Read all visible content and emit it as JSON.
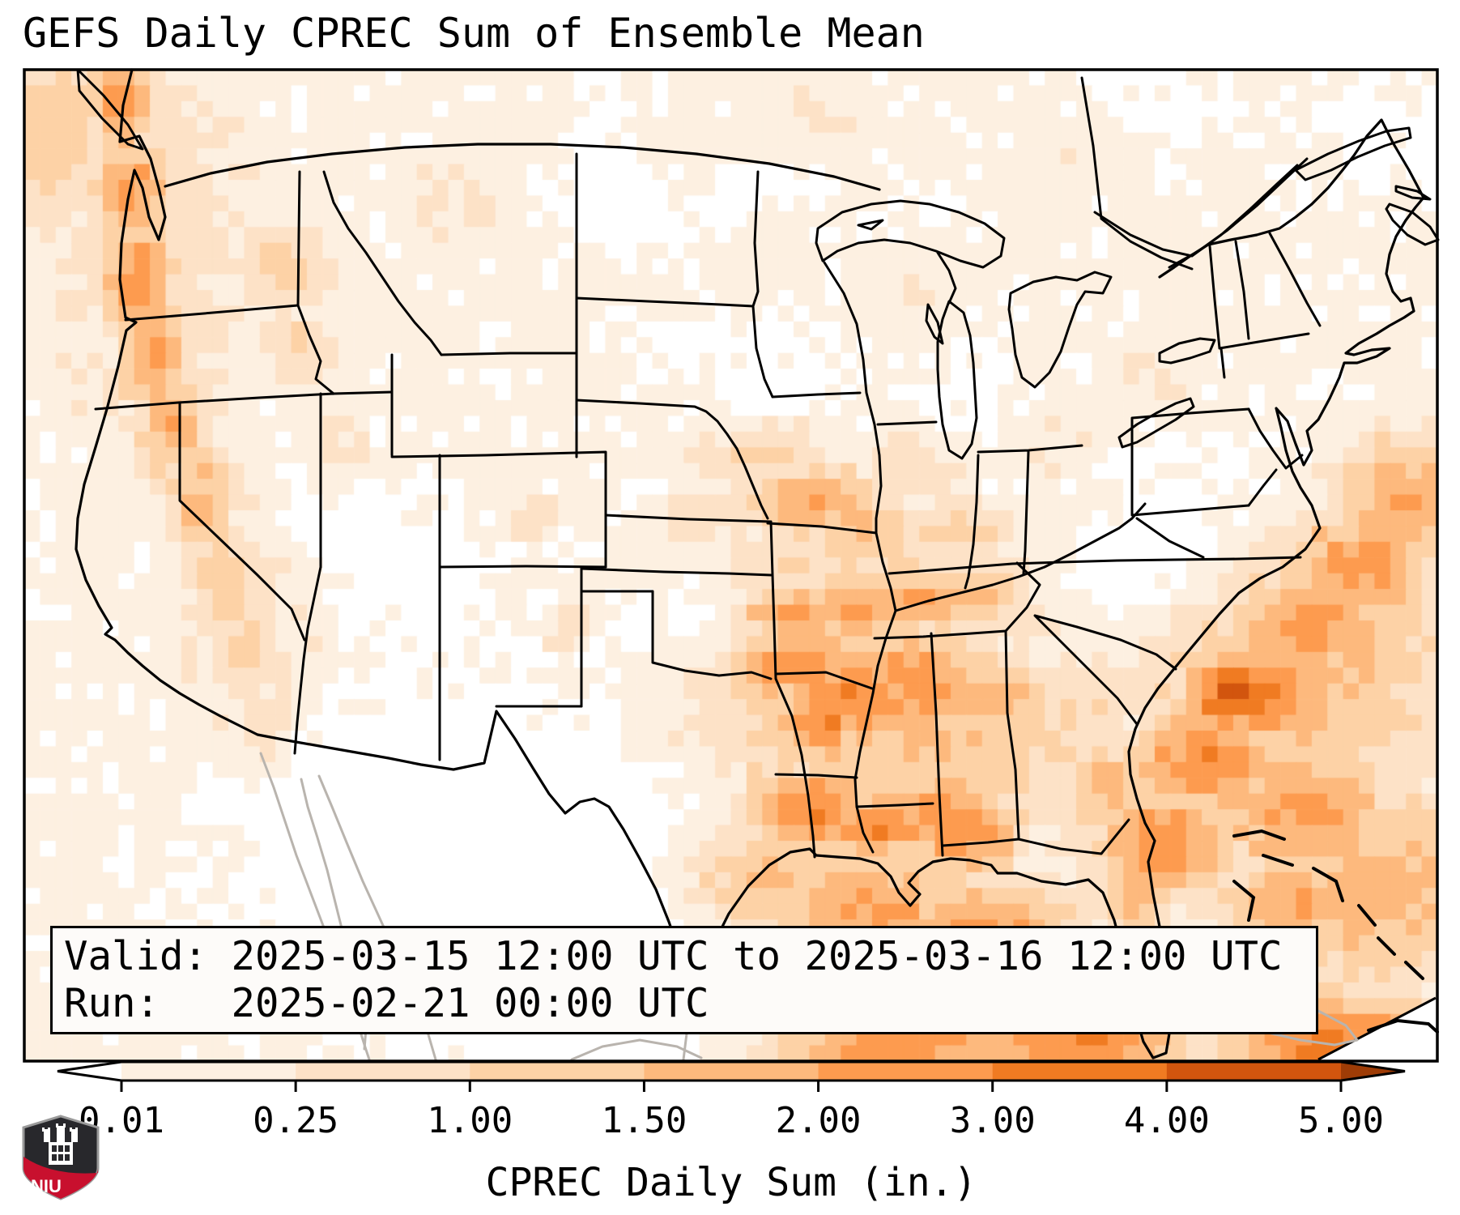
{
  "title": "GEFS Daily CPREC Sum of Ensemble Mean",
  "info_box": {
    "line1": "Valid: 2025-03-15 12:00 UTC to 2025-03-16 12:00 UTC",
    "line2": "Run:   2025-02-21 00:00 UTC"
  },
  "colorbar": {
    "label": "CPREC Daily Sum (in.)",
    "tick_labels": [
      "0.01",
      "0.25",
      "1.00",
      "1.50",
      "2.00",
      "3.00",
      "4.00",
      "5.00"
    ],
    "segment_colors": [
      "#fdf0e1",
      "#fde2c7",
      "#fdd2a6",
      "#fdb97d",
      "#fd9b4f",
      "#f07b22",
      "#d2550e"
    ],
    "under_arrow_color": "#ffffff",
    "over_arrow_color": "#9e3c06",
    "border_color": "#000000"
  },
  "logo": {
    "text": "NIU",
    "shield_dark": "#28282c",
    "shield_red": "#c8102e",
    "trim": "#9a9a9a"
  },
  "chart_data": {
    "type": "heatmap",
    "title": "GEFS Daily CPREC Sum of Ensemble Mean",
    "variable": "CPREC Daily Sum",
    "units": "in.",
    "valid": "2025-03-15 12:00 UTC to 2025-03-16 12:00 UTC",
    "run": "2025-02-21 00:00 UTC",
    "levels": [
      0.01,
      0.25,
      1.0,
      1.5,
      2.0,
      3.0,
      4.0,
      5.0
    ],
    "bin_colors": [
      "#ffffff",
      "#fdf0e1",
      "#fde2c7",
      "#fdd2a6",
      "#fdb97d",
      "#fd9b4f",
      "#f07b22",
      "#d2550e",
      "#a63b08"
    ],
    "legend_position": "bottom",
    "grid": {
      "cols": 90,
      "rows": 63
    },
    "base_level": 1.35,
    "noise_amp": 0.9,
    "blobs": [
      [
        0.069,
        0.028,
        0.022,
        0.055,
        5.3
      ],
      [
        0.076,
        0.126,
        0.022,
        0.055,
        5.5
      ],
      [
        0.081,
        0.208,
        0.022,
        0.055,
        5.6
      ],
      [
        0.091,
        0.281,
        0.022,
        0.055,
        5.2
      ],
      [
        0.104,
        0.355,
        0.022,
        0.055,
        4.7
      ],
      [
        0.125,
        0.436,
        0.022,
        0.055,
        4.5
      ],
      [
        0.144,
        0.518,
        0.02,
        0.05,
        4.1
      ],
      [
        0.159,
        0.583,
        0.02,
        0.05,
        3.6
      ],
      [
        0.172,
        0.665,
        0.02,
        0.05,
        3.1
      ],
      [
        0.09,
        0.18,
        0.075,
        0.22,
        2.7
      ],
      [
        0.16,
        0.55,
        0.07,
        0.18,
        2.4
      ],
      [
        0.012,
        0.06,
        0.05,
        0.1,
        3.6
      ],
      [
        0.183,
        0.199,
        0.032,
        0.045,
        3.3
      ],
      [
        0.194,
        0.281,
        0.028,
        0.04,
        3.1
      ],
      [
        0.221,
        0.387,
        0.025,
        0.05,
        2.9
      ],
      [
        0.304,
        0.134,
        0.05,
        0.05,
        2.3
      ],
      [
        0.361,
        0.453,
        0.02,
        0.025,
        3.0
      ],
      [
        0.384,
        0.567,
        0.018,
        0.03,
        2.8
      ],
      [
        0.464,
        0.093,
        0.07,
        0.05,
        2.2
      ],
      [
        0.533,
        0.175,
        0.05,
        0.05,
        2.1
      ],
      [
        0.556,
        0.436,
        0.045,
        0.035,
        4.7
      ],
      [
        0.59,
        0.461,
        0.04,
        0.03,
        4.4
      ],
      [
        0.521,
        0.387,
        0.05,
        0.04,
        3.2
      ],
      [
        0.625,
        0.404,
        0.05,
        0.045,
        2.7
      ],
      [
        0.476,
        0.453,
        0.04,
        0.035,
        2.6
      ],
      [
        0.659,
        0.469,
        0.045,
        0.04,
        3.5
      ],
      [
        0.739,
        0.387,
        0.06,
        0.06,
        2.3
      ],
      [
        0.797,
        0.314,
        0.05,
        0.06,
        2.0
      ],
      [
        0.544,
        0.551,
        0.04,
        0.026,
        5.2
      ],
      [
        0.59,
        0.542,
        0.045,
        0.026,
        5.4
      ],
      [
        0.636,
        0.534,
        0.04,
        0.026,
        5.1
      ],
      [
        0.676,
        0.526,
        0.038,
        0.028,
        4.5
      ],
      [
        0.544,
        0.6,
        0.045,
        0.035,
        5.7
      ],
      [
        0.59,
        0.632,
        0.05,
        0.045,
        6.0
      ],
      [
        0.636,
        0.616,
        0.045,
        0.045,
        5.7
      ],
      [
        0.688,
        0.624,
        0.04,
        0.04,
        5.2
      ],
      [
        0.562,
        0.657,
        0.03,
        0.03,
        6.1
      ],
      [
        0.556,
        0.747,
        0.045,
        0.035,
        6.2
      ],
      [
        0.602,
        0.763,
        0.045,
        0.03,
        6.1
      ],
      [
        0.648,
        0.747,
        0.04,
        0.035,
        5.7
      ],
      [
        0.665,
        0.771,
        0.035,
        0.035,
        5.8
      ],
      [
        0.521,
        0.82,
        0.07,
        0.06,
        4.4
      ],
      [
        0.596,
        0.853,
        0.07,
        0.06,
        5.2
      ],
      [
        0.67,
        0.894,
        0.07,
        0.07,
        5.8
      ],
      [
        0.745,
        0.967,
        0.07,
        0.05,
        6.2
      ],
      [
        0.625,
        0.984,
        0.09,
        0.04,
        5.6
      ],
      [
        0.464,
        0.918,
        0.06,
        0.05,
        3.4
      ],
      [
        0.768,
        0.73,
        0.03,
        0.045,
        5.0
      ],
      [
        0.785,
        0.82,
        0.028,
        0.05,
        5.0
      ],
      [
        0.802,
        0.779,
        0.05,
        0.05,
        5.7
      ],
      [
        0.837,
        0.698,
        0.05,
        0.05,
        5.8
      ],
      [
        0.874,
        0.628,
        0.05,
        0.05,
        6.0
      ],
      [
        0.908,
        0.563,
        0.05,
        0.05,
        5.6
      ],
      [
        0.943,
        0.501,
        0.05,
        0.055,
        5.3
      ],
      [
        0.98,
        0.436,
        0.05,
        0.06,
        5.0
      ],
      [
        0.9,
        0.6,
        0.11,
        0.13,
        4.3
      ],
      [
        0.957,
        0.828,
        0.07,
        0.09,
        4.7
      ],
      [
        0.905,
        0.747,
        0.06,
        0.07,
        5.2
      ],
      [
        0.854,
        0.628,
        0.028,
        0.038,
        7.3
      ],
      [
        0.845,
        0.636,
        0.011,
        0.013,
        8.4
      ],
      [
        0.928,
        0.984,
        0.07,
        0.045,
        6.3
      ],
      [
        0.894,
        0.845,
        0.04,
        0.05,
        5.1
      ],
      [
        0.625,
        0.216,
        0.06,
        0.07,
        2.2
      ],
      [
        0.556,
        0.044,
        0.06,
        0.04,
        2.2
      ],
      [
        0.751,
        0.069,
        0.05,
        0.05,
        2.1
      ],
      [
        0.625,
        0.649,
        0.15,
        0.13,
        4.1
      ],
      [
        0.585,
        0.502,
        0.13,
        0.07,
        3.0
      ],
      [
        0.757,
        0.453,
        0.1,
        0.1,
        2.2
      ]
    ],
    "dry_zones": [
      [
        0.265,
        0.775,
        0.075,
        0.1,
        1.5
      ],
      [
        0.355,
        0.875,
        0.075,
        0.09,
        1.5
      ],
      [
        0.43,
        0.8,
        0.06,
        0.09,
        1.1
      ],
      [
        0.445,
        0.93,
        0.06,
        0.05,
        0.9
      ],
      [
        0.225,
        0.46,
        0.04,
        0.06,
        1.0
      ],
      [
        0.295,
        0.52,
        0.03,
        0.04,
        0.8
      ],
      [
        0.43,
        0.125,
        0.045,
        0.05,
        1.1
      ],
      [
        0.515,
        0.3,
        0.05,
        0.05,
        0.8
      ],
      [
        0.475,
        0.555,
        0.035,
        0.04,
        1.0
      ],
      [
        0.52,
        0.115,
        0.03,
        0.03,
        0.8
      ],
      [
        0.7,
        0.6,
        0.025,
        0.03,
        1.2
      ],
      [
        0.8,
        0.52,
        0.05,
        0.05,
        1.4
      ],
      [
        0.79,
        0.44,
        0.06,
        0.05,
        1.0
      ],
      [
        0.762,
        0.78,
        0.018,
        0.05,
        0.9
      ],
      [
        0.8,
        0.03,
        0.05,
        0.04,
        0.7
      ],
      [
        0.965,
        0.065,
        0.04,
        0.05,
        0.8
      ],
      [
        0.6,
        0.175,
        0.04,
        0.04,
        0.6
      ],
      [
        0.66,
        0.33,
        0.03,
        0.05,
        0.6
      ]
    ]
  }
}
